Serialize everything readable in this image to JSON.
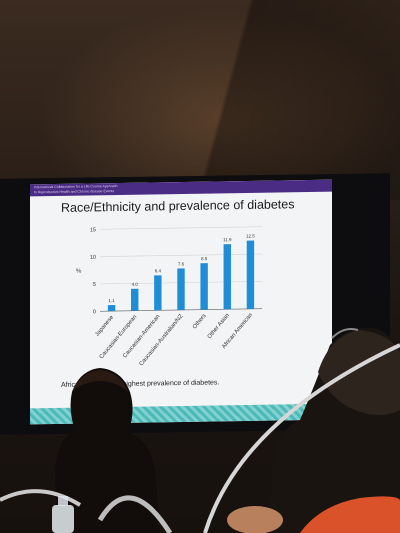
{
  "slide": {
    "header_line1": "International Collaboration for a Life Course Approach",
    "header_line2": "to Reproductive Health and Chronic disease Events",
    "title": "Race/Ethnicity and prevalence of diabetes",
    "footnote": "African … have the highest prevalence of diabetes."
  },
  "chart_data": {
    "type": "bar",
    "categories": [
      "Japanese",
      "Caucasian-European",
      "Caucasian-American",
      "Caucasian-Australian/NZ",
      "Others",
      "Other Asian",
      "African American"
    ],
    "values": [
      1.1,
      4.0,
      6.4,
      7.6,
      8.5,
      11.9,
      12.5
    ],
    "value_labels": [
      "1.1",
      "4.0",
      "6.4",
      "7.6",
      "8.5",
      "11.9",
      "12.5"
    ],
    "ylabel": "%",
    "yticks": [
      "0",
      "5",
      "10",
      "15"
    ],
    "ylim": [
      0,
      15
    ],
    "bar_color": "#1f8ed6"
  }
}
